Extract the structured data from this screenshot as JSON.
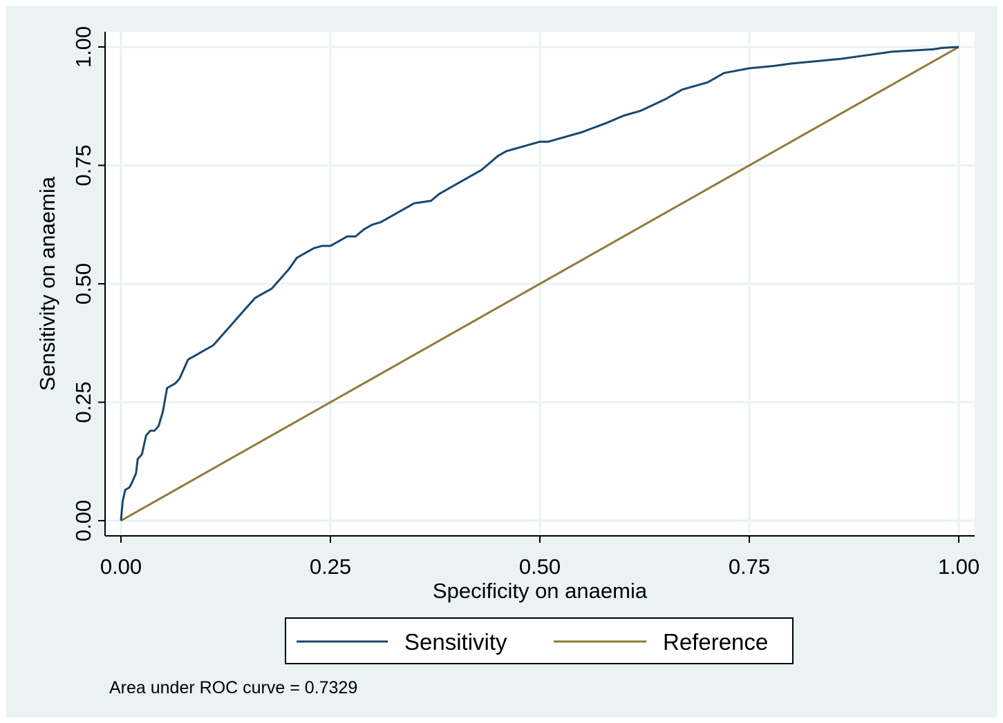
{
  "chart_data": {
    "type": "line",
    "title": "",
    "xlabel": "Specificity on anaemia",
    "ylabel": "Sensitivity on anaemia",
    "xlim": [
      0,
      1
    ],
    "ylim": [
      0,
      1
    ],
    "xticks": [
      "0.00",
      "0.25",
      "0.50",
      "0.75",
      "1.00"
    ],
    "yticks": [
      "0.00",
      "0.25",
      "0.50",
      "0.75",
      "1.00"
    ],
    "grid": true,
    "legend_position": "bottom",
    "background_color": "#eaf2f3",
    "plot_background_color": "#ffffff",
    "grid_color": "#eaf2f3",
    "series": [
      {
        "name": "Sensitivity",
        "color": "#1a476f",
        "x": [
          0,
          0.002,
          0.005,
          0.01,
          0.013,
          0.018,
          0.02,
          0.025,
          0.03,
          0.035,
          0.04,
          0.045,
          0.05,
          0.055,
          0.06,
          0.065,
          0.07,
          0.075,
          0.08,
          0.085,
          0.09,
          0.1,
          0.11,
          0.12,
          0.125,
          0.13,
          0.14,
          0.15,
          0.16,
          0.17,
          0.18,
          0.185,
          0.19,
          0.2,
          0.21,
          0.22,
          0.23,
          0.24,
          0.25,
          0.26,
          0.27,
          0.28,
          0.29,
          0.3,
          0.31,
          0.33,
          0.35,
          0.37,
          0.38,
          0.4,
          0.42,
          0.43,
          0.44,
          0.45,
          0.46,
          0.47,
          0.48,
          0.5,
          0.51,
          0.53,
          0.55,
          0.58,
          0.6,
          0.62,
          0.65,
          0.67,
          0.7,
          0.72,
          0.75,
          0.78,
          0.8,
          0.83,
          0.86,
          0.88,
          0.9,
          0.92,
          0.95,
          0.97,
          0.98,
          1.0
        ],
        "y": [
          0,
          0.04,
          0.065,
          0.07,
          0.08,
          0.1,
          0.13,
          0.14,
          0.18,
          0.19,
          0.19,
          0.2,
          0.23,
          0.28,
          0.285,
          0.29,
          0.3,
          0.32,
          0.34,
          0.345,
          0.35,
          0.36,
          0.37,
          0.39,
          0.4,
          0.41,
          0.43,
          0.45,
          0.47,
          0.48,
          0.49,
          0.5,
          0.51,
          0.53,
          0.555,
          0.565,
          0.575,
          0.58,
          0.58,
          0.59,
          0.6,
          0.6,
          0.615,
          0.625,
          0.63,
          0.65,
          0.67,
          0.675,
          0.69,
          0.71,
          0.73,
          0.74,
          0.755,
          0.77,
          0.78,
          0.785,
          0.79,
          0.8,
          0.8,
          0.81,
          0.82,
          0.84,
          0.855,
          0.865,
          0.89,
          0.91,
          0.925,
          0.945,
          0.955,
          0.96,
          0.965,
          0.97,
          0.975,
          0.98,
          0.985,
          0.99,
          0.993,
          0.995,
          0.998,
          1.0
        ]
      },
      {
        "name": "Reference",
        "color": "#90793a",
        "x": [
          0,
          1
        ],
        "y": [
          0,
          1
        ]
      }
    ],
    "annotation": "Area under ROC curve = 0.7329"
  }
}
